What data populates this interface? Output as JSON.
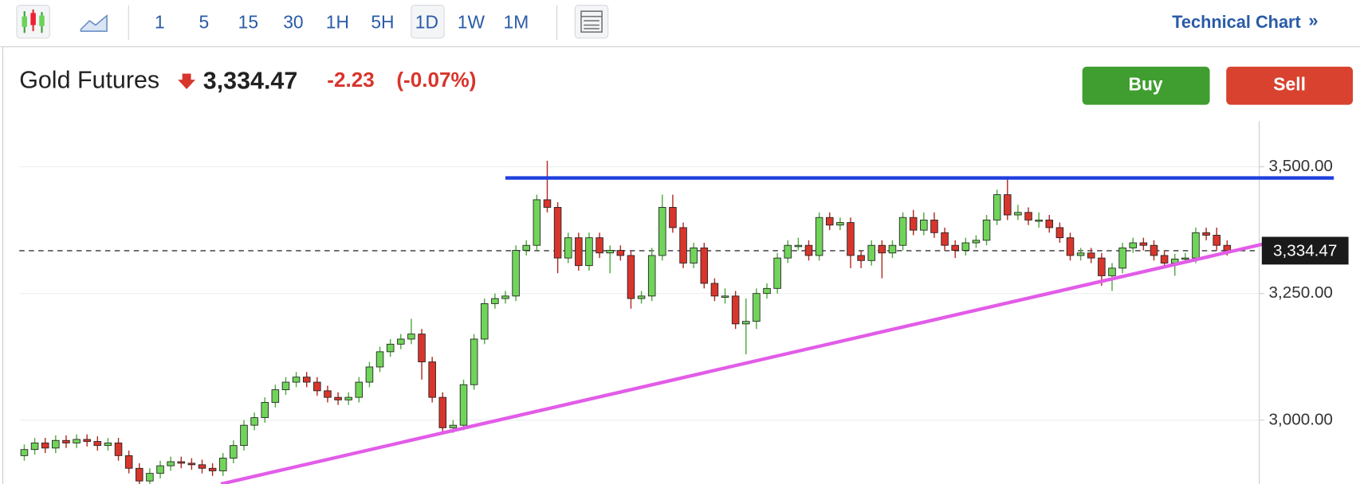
{
  "toolbar": {
    "intervals": [
      "1",
      "5",
      "15",
      "30",
      "1H",
      "5H",
      "1D",
      "1W",
      "1M"
    ],
    "active_interval": 6,
    "technical_chart": "Technical Chart",
    "technical_chart_arrow": "»"
  },
  "quote": {
    "name": "Gold Futures",
    "price": "3,334.47",
    "change": "-2.23",
    "change_percent": "(-0.07%)"
  },
  "buttons": {
    "buy": "Buy",
    "sell": "Sell"
  },
  "chart_data": {
    "type": "candlestick",
    "up_color": "#71d45a",
    "down_color": "#d8352c",
    "open": [
      2930,
      2942,
      2955,
      2945,
      2960,
      2955,
      2962,
      2958,
      2950,
      2955,
      2930,
      2905,
      2880,
      2895,
      2910,
      2918,
      2915,
      2912,
      2905,
      2900,
      2925,
      2950,
      2990,
      3005,
      3035,
      3060,
      3075,
      3085,
      3075,
      3058,
      3045,
      3040,
      3045,
      3075,
      3105,
      3135,
      3150,
      3160,
      3170,
      3115,
      3045,
      2985,
      2990,
      3070,
      3160,
      3230,
      3240,
      3245,
      3335,
      3345,
      3435,
      3420,
      3320,
      3360,
      3305,
      3360,
      3330,
      3335,
      3325,
      3240,
      3245,
      3325,
      3420,
      3380,
      3310,
      3340,
      3270,
      3245,
      3245,
      3190,
      3195,
      3250,
      3260,
      3320,
      3345,
      3345,
      3325,
      3400,
      3385,
      3390,
      3325,
      3315,
      3345,
      3330,
      3345,
      3400,
      3375,
      3395,
      3370,
      3345,
      3335,
      3350,
      3355,
      3395,
      3445,
      3405,
      3410,
      3395,
      3395,
      3380,
      3360,
      3325,
      3330,
      3320,
      3285,
      3300,
      3340,
      3350,
      3345,
      3325,
      3310,
      3318,
      3320,
      3370,
      3365,
      3345
    ],
    "high": [
      2952,
      2965,
      2965,
      2970,
      2970,
      2972,
      2972,
      2968,
      2965,
      2965,
      2940,
      2915,
      2905,
      2920,
      2928,
      2928,
      2925,
      2922,
      2915,
      2935,
      2960,
      3000,
      3015,
      3045,
      3070,
      3085,
      3095,
      3095,
      3085,
      3068,
      3055,
      3055,
      3085,
      3115,
      3145,
      3160,
      3170,
      3200,
      3180,
      3125,
      3055,
      3000,
      3080,
      3170,
      3240,
      3250,
      3255,
      3345,
      3355,
      3445,
      3512,
      3430,
      3370,
      3370,
      3370,
      3370,
      3345,
      3345,
      3335,
      3255,
      3340,
      3445,
      3445,
      3390,
      3350,
      3350,
      3280,
      3260,
      3255,
      3240,
      3260,
      3270,
      3330,
      3355,
      3360,
      3355,
      3410,
      3410,
      3400,
      3400,
      3335,
      3355,
      3355,
      3355,
      3410,
      3415,
      3410,
      3410,
      3380,
      3355,
      3360,
      3365,
      3405,
      3455,
      3480,
      3425,
      3420,
      3410,
      3405,
      3390,
      3370,
      3340,
      3340,
      3330,
      3310,
      3350,
      3360,
      3360,
      3355,
      3335,
      3328,
      3330,
      3380,
      3380,
      3380,
      3355
    ],
    "low": [
      2920,
      2932,
      2935,
      2935,
      2945,
      2945,
      2948,
      2940,
      2940,
      2920,
      2895,
      2870,
      2870,
      2885,
      2900,
      2905,
      2902,
      2895,
      2890,
      2890,
      2915,
      2940,
      2980,
      2995,
      3025,
      3050,
      3065,
      3065,
      3048,
      3035,
      3030,
      3030,
      3035,
      3065,
      3095,
      3125,
      3140,
      3150,
      3080,
      3035,
      2975,
      2975,
      2980,
      3060,
      3150,
      3220,
      3230,
      3235,
      3325,
      3335,
      3410,
      3290,
      3310,
      3295,
      3295,
      3320,
      3290,
      3315,
      3220,
      3230,
      3235,
      3315,
      3370,
      3300,
      3300,
      3260,
      3235,
      3230,
      3180,
      3130,
      3180,
      3240,
      3250,
      3310,
      3335,
      3315,
      3315,
      3375,
      3375,
      3300,
      3300,
      3305,
      3280,
      3320,
      3335,
      3365,
      3365,
      3360,
      3335,
      3320,
      3325,
      3340,
      3345,
      3385,
      3395,
      3395,
      3385,
      3380,
      3370,
      3350,
      3315,
      3315,
      3310,
      3265,
      3255,
      3290,
      3330,
      3335,
      3315,
      3300,
      3285,
      3310,
      3310,
      3355,
      3335,
      3325
    ],
    "close": [
      2942,
      2955,
      2945,
      2960,
      2955,
      2962,
      2958,
      2950,
      2955,
      2930,
      2905,
      2880,
      2895,
      2910,
      2918,
      2915,
      2912,
      2905,
      2900,
      2925,
      2950,
      2990,
      3005,
      3035,
      3060,
      3075,
      3085,
      3075,
      3058,
      3045,
      3040,
      3045,
      3075,
      3105,
      3135,
      3150,
      3160,
      3170,
      3115,
      3045,
      2985,
      2990,
      3070,
      3160,
      3230,
      3240,
      3245,
      3335,
      3345,
      3435,
      3420,
      3320,
      3360,
      3305,
      3360,
      3330,
      3335,
      3325,
      3240,
      3245,
      3325,
      3420,
      3380,
      3310,
      3340,
      3270,
      3245,
      3245,
      3190,
      3195,
      3250,
      3260,
      3320,
      3345,
      3345,
      3325,
      3400,
      3385,
      3390,
      3325,
      3315,
      3345,
      3330,
      3345,
      3400,
      3375,
      3395,
      3370,
      3345,
      3335,
      3350,
      3355,
      3395,
      3445,
      3405,
      3410,
      3395,
      3395,
      3380,
      3360,
      3325,
      3330,
      3320,
      3285,
      3300,
      3340,
      3350,
      3345,
      3325,
      3310,
      3318,
      3320,
      3370,
      3365,
      3345,
      3334.47
    ],
    "xlim": [
      -2.3,
      117.9
    ],
    "ylim": [
      2874,
      3590
    ],
    "yticks": [
      {
        "value": 3000,
        "label": "3,000.00"
      },
      {
        "value": 3250,
        "label": "3,250.00"
      },
      {
        "value": 3500,
        "label": "3,500.00"
      }
    ],
    "grid": true,
    "last_price": {
      "value": 3334.47,
      "label": "3,334.47"
    },
    "resistance_line": {
      "value": 3478,
      "x": [
        46,
        125.2
      ],
      "color": "#1f3fe0"
    },
    "support_line": {
      "x": [
        18.8,
        119.6
      ],
      "y": [
        2874,
        3353
      ],
      "color": "#e25ce8"
    }
  }
}
